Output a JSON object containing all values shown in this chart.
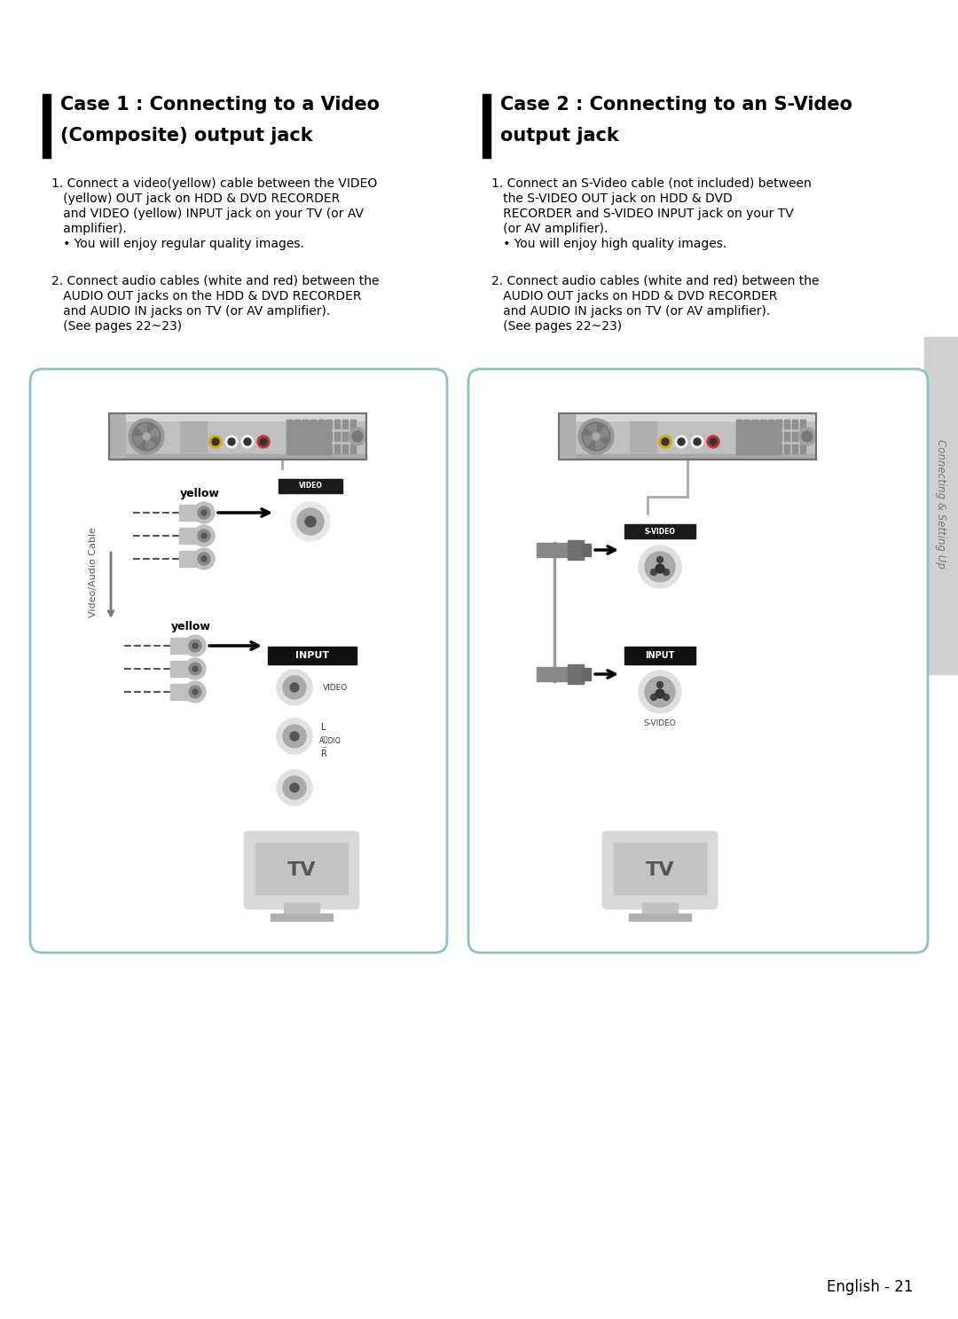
{
  "bg_color": "#ffffff",
  "title1_line1": "Case 1 : Connecting to a Video",
  "title1_line2": "(Composite) output jack",
  "title2_line1": "Case 2 : Connecting to an S-Video",
  "title2_line2": "output jack",
  "body1_p1_l1": "1. Connect a video(yellow) cable between the VIDEO",
  "body1_p1_l2": "   (yellow) OUT jack on HDD & DVD RECORDER",
  "body1_p1_l3": "   and VIDEO (yellow) INPUT jack on your TV (or AV",
  "body1_p1_l4": "   amplifier).",
  "body1_p1_l5": "   • You will enjoy regular quality images.",
  "body1_p2_l1": "2. Connect audio cables (white and red) between the",
  "body1_p2_l2": "   AUDIO OUT jacks on the HDD & DVD RECORDER",
  "body1_p2_l3": "   and AUDIO IN jacks on TV (or AV amplifier).",
  "body1_p2_l4": "   (See pages 22~23)",
  "body2_p1_l1": "1. Connect an S-Video cable (not included) between",
  "body2_p1_l2": "   the S-VIDEO OUT jack on HDD & DVD",
  "body2_p1_l3": "   RECORDER and S-VIDEO INPUT jack on your TV",
  "body2_p1_l4": "   (or AV amplifier).",
  "body2_p1_l5": "   • You will enjoy high quality images.",
  "body2_p2_l1": "2. Connect audio cables (white and red) between the",
  "body2_p2_l2": "   AUDIO OUT jacks on HDD & DVD RECORDER",
  "body2_p2_l3": "   and AUDIO IN jacks on TV (or AV amplifier).",
  "body2_p2_l4": "   (See pages 22~23)",
  "sidebar_text": "Connecting & Setting Up",
  "footer_text": "English - 21",
  "box_edge_color": "#88c4c4",
  "box_face_color": "#ffffff",
  "label_yellow": "yellow",
  "label_video_cable": "Video/Audio Cable",
  "label_input": "INPUT",
  "label_video": "VIDEO",
  "label_svideo_out": "S-VIDEO",
  "label_svideo_in": "S-VIDEO",
  "label_tv": "TV"
}
